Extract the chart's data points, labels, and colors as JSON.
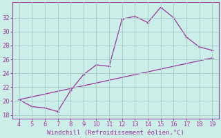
{
  "xlabel": "Windchill (Refroidissement éolien,°C)",
  "color": "#993399",
  "bg_color": "#cceee8",
  "grid_color": "#aacccc",
  "xlim": [
    3.5,
    19.5
  ],
  "ylim": [
    17.5,
    34.2
  ],
  "yticks": [
    18,
    20,
    22,
    24,
    26,
    28,
    30,
    32
  ],
  "xticks": [
    4,
    5,
    6,
    7,
    8,
    9,
    10,
    11,
    12,
    13,
    14,
    15,
    16,
    17,
    18,
    19
  ],
  "curve_x": [
    4,
    5,
    6,
    7,
    8,
    9,
    10,
    11,
    12,
    13,
    14,
    15,
    16,
    17,
    18,
    19
  ],
  "curve_y": [
    20.2,
    19.2,
    19.0,
    18.5,
    21.5,
    23.8,
    25.2,
    25.0,
    31.8,
    32.2,
    31.3,
    33.5,
    32.0,
    29.2,
    27.8,
    27.3
  ],
  "line_x": [
    4,
    19
  ],
  "line_y": [
    20.2,
    26.2
  ]
}
